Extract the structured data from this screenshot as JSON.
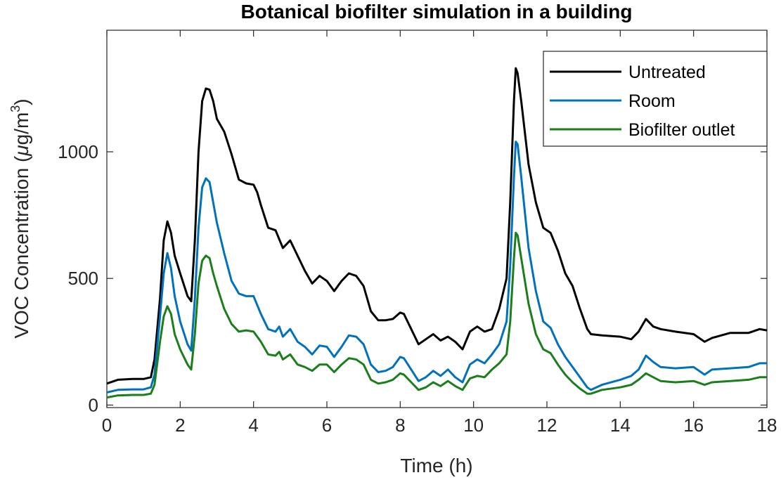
{
  "chart_data": {
    "type": "line",
    "title": "Botanical biofilter simulation in a building",
    "xlabel": "Time (h)",
    "ylabel_text": "VOC Concentration (",
    "ylabel_unit_mu": "μ",
    "ylabel_unit_rest": "g/m",
    "ylabel_unit_sup": "3",
    "ylabel_close": ")",
    "xlim": [
      0,
      18
    ],
    "ylim": [
      -10,
      1480
    ],
    "xticks": [
      0,
      2,
      4,
      6,
      8,
      10,
      12,
      14,
      16,
      18
    ],
    "yticks": [
      0,
      500,
      1000
    ],
    "xtick_labels": [
      "0",
      "2",
      "4",
      "6",
      "8",
      "10",
      "12",
      "14",
      "16",
      "18"
    ],
    "ytick_labels": [
      "0",
      "500",
      "1000"
    ],
    "grid": false,
    "legend_position": "top-right",
    "series": [
      {
        "name": "Untreated",
        "color": "#000000",
        "points": [
          [
            0,
            85
          ],
          [
            0.3,
            100
          ],
          [
            0.7,
            103
          ],
          [
            1.0,
            103
          ],
          [
            1.2,
            110
          ],
          [
            1.3,
            180
          ],
          [
            1.45,
            420
          ],
          [
            1.55,
            650
          ],
          [
            1.65,
            725
          ],
          [
            1.75,
            680
          ],
          [
            1.85,
            590
          ],
          [
            2.0,
            520
          ],
          [
            2.2,
            430
          ],
          [
            2.3,
            410
          ],
          [
            2.4,
            650
          ],
          [
            2.5,
            1000
          ],
          [
            2.6,
            1200
          ],
          [
            2.7,
            1250
          ],
          [
            2.8,
            1245
          ],
          [
            2.9,
            1200
          ],
          [
            3.0,
            1130
          ],
          [
            3.2,
            1080
          ],
          [
            3.4,
            990
          ],
          [
            3.6,
            890
          ],
          [
            3.8,
            875
          ],
          [
            4.0,
            870
          ],
          [
            4.1,
            840
          ],
          [
            4.2,
            790
          ],
          [
            4.4,
            700
          ],
          [
            4.6,
            690
          ],
          [
            4.8,
            620
          ],
          [
            5.0,
            650
          ],
          [
            5.2,
            590
          ],
          [
            5.4,
            530
          ],
          [
            5.6,
            480
          ],
          [
            5.8,
            510
          ],
          [
            6.0,
            490
          ],
          [
            6.2,
            450
          ],
          [
            6.4,
            490
          ],
          [
            6.6,
            520
          ],
          [
            6.8,
            510
          ],
          [
            7.0,
            470
          ],
          [
            7.2,
            370
          ],
          [
            7.4,
            335
          ],
          [
            7.6,
            335
          ],
          [
            7.8,
            340
          ],
          [
            8.0,
            365
          ],
          [
            8.1,
            360
          ],
          [
            8.3,
            300
          ],
          [
            8.5,
            240
          ],
          [
            8.7,
            260
          ],
          [
            8.9,
            280
          ],
          [
            9.1,
            255
          ],
          [
            9.3,
            270
          ],
          [
            9.5,
            250
          ],
          [
            9.7,
            220
          ],
          [
            9.9,
            290
          ],
          [
            10.1,
            310
          ],
          [
            10.3,
            290
          ],
          [
            10.5,
            300
          ],
          [
            10.7,
            380
          ],
          [
            10.9,
            500
          ],
          [
            11.0,
            800
          ],
          [
            11.1,
            1200
          ],
          [
            11.15,
            1330
          ],
          [
            11.2,
            1310
          ],
          [
            11.3,
            1200
          ],
          [
            11.5,
            950
          ],
          [
            11.7,
            800
          ],
          [
            11.9,
            700
          ],
          [
            12.1,
            680
          ],
          [
            12.3,
            610
          ],
          [
            12.5,
            520
          ],
          [
            12.7,
            470
          ],
          [
            12.9,
            380
          ],
          [
            13.1,
            300
          ],
          [
            13.2,
            280
          ],
          [
            13.5,
            275
          ],
          [
            14.0,
            270
          ],
          [
            14.3,
            260
          ],
          [
            14.5,
            290
          ],
          [
            14.7,
            340
          ],
          [
            14.9,
            310
          ],
          [
            15.1,
            300
          ],
          [
            15.5,
            290
          ],
          [
            16.0,
            280
          ],
          [
            16.3,
            250
          ],
          [
            16.5,
            265
          ],
          [
            17.0,
            285
          ],
          [
            17.5,
            285
          ],
          [
            17.8,
            300
          ],
          [
            18.0,
            295
          ]
        ]
      },
      {
        "name": "Room",
        "color": "#0072bd",
        "points": [
          [
            0,
            50
          ],
          [
            0.3,
            60
          ],
          [
            0.7,
            62
          ],
          [
            1.0,
            62
          ],
          [
            1.2,
            70
          ],
          [
            1.3,
            120
          ],
          [
            1.45,
            350
          ],
          [
            1.55,
            520
          ],
          [
            1.65,
            600
          ],
          [
            1.75,
            540
          ],
          [
            1.85,
            430
          ],
          [
            2.0,
            330
          ],
          [
            2.2,
            240
          ],
          [
            2.3,
            215
          ],
          [
            2.4,
            420
          ],
          [
            2.5,
            700
          ],
          [
            2.6,
            860
          ],
          [
            2.7,
            895
          ],
          [
            2.8,
            880
          ],
          [
            2.9,
            800
          ],
          [
            3.0,
            720
          ],
          [
            3.2,
            600
          ],
          [
            3.4,
            490
          ],
          [
            3.6,
            440
          ],
          [
            3.8,
            430
          ],
          [
            4.0,
            430
          ],
          [
            4.2,
            360
          ],
          [
            4.4,
            300
          ],
          [
            4.6,
            290
          ],
          [
            4.7,
            310
          ],
          [
            4.8,
            270
          ],
          [
            5.0,
            300
          ],
          [
            5.2,
            250
          ],
          [
            5.4,
            230
          ],
          [
            5.6,
            200
          ],
          [
            5.8,
            235
          ],
          [
            6.0,
            230
          ],
          [
            6.2,
            190
          ],
          [
            6.4,
            230
          ],
          [
            6.6,
            275
          ],
          [
            6.8,
            270
          ],
          [
            7.0,
            240
          ],
          [
            7.2,
            160
          ],
          [
            7.4,
            130
          ],
          [
            7.6,
            135
          ],
          [
            7.8,
            150
          ],
          [
            8.0,
            190
          ],
          [
            8.1,
            185
          ],
          [
            8.3,
            140
          ],
          [
            8.5,
            95
          ],
          [
            8.7,
            110
          ],
          [
            8.9,
            135
          ],
          [
            9.1,
            115
          ],
          [
            9.3,
            140
          ],
          [
            9.5,
            110
          ],
          [
            9.7,
            90
          ],
          [
            9.9,
            160
          ],
          [
            10.1,
            180
          ],
          [
            10.3,
            165
          ],
          [
            10.5,
            200
          ],
          [
            10.7,
            240
          ],
          [
            10.9,
            330
          ],
          [
            11.0,
            550
          ],
          [
            11.1,
            900
          ],
          [
            11.15,
            1040
          ],
          [
            11.2,
            1030
          ],
          [
            11.3,
            900
          ],
          [
            11.5,
            620
          ],
          [
            11.7,
            450
          ],
          [
            11.9,
            330
          ],
          [
            12.1,
            305
          ],
          [
            12.3,
            240
          ],
          [
            12.5,
            190
          ],
          [
            12.7,
            150
          ],
          [
            12.9,
            110
          ],
          [
            13.1,
            70
          ],
          [
            13.2,
            60
          ],
          [
            13.5,
            80
          ],
          [
            14.0,
            100
          ],
          [
            14.3,
            115
          ],
          [
            14.5,
            140
          ],
          [
            14.7,
            195
          ],
          [
            14.9,
            170
          ],
          [
            15.1,
            150
          ],
          [
            15.5,
            145
          ],
          [
            16.0,
            150
          ],
          [
            16.3,
            120
          ],
          [
            16.5,
            140
          ],
          [
            17.0,
            145
          ],
          [
            17.5,
            150
          ],
          [
            17.8,
            165
          ],
          [
            18.0,
            165
          ]
        ]
      },
      {
        "name": "Biofilter outlet",
        "color": "#1a7f1a",
        "points": [
          [
            0,
            30
          ],
          [
            0.3,
            38
          ],
          [
            0.7,
            40
          ],
          [
            1.0,
            40
          ],
          [
            1.2,
            45
          ],
          [
            1.3,
            80
          ],
          [
            1.45,
            250
          ],
          [
            1.55,
            350
          ],
          [
            1.65,
            390
          ],
          [
            1.75,
            360
          ],
          [
            1.85,
            280
          ],
          [
            2.0,
            220
          ],
          [
            2.2,
            160
          ],
          [
            2.3,
            140
          ],
          [
            2.4,
            280
          ],
          [
            2.5,
            480
          ],
          [
            2.6,
            570
          ],
          [
            2.7,
            590
          ],
          [
            2.8,
            580
          ],
          [
            2.9,
            520
          ],
          [
            3.0,
            470
          ],
          [
            3.2,
            380
          ],
          [
            3.4,
            320
          ],
          [
            3.6,
            290
          ],
          [
            3.8,
            295
          ],
          [
            4.0,
            290
          ],
          [
            4.2,
            250
          ],
          [
            4.4,
            200
          ],
          [
            4.6,
            195
          ],
          [
            4.7,
            210
          ],
          [
            4.8,
            180
          ],
          [
            5.0,
            200
          ],
          [
            5.2,
            160
          ],
          [
            5.4,
            150
          ],
          [
            5.6,
            135
          ],
          [
            5.8,
            160
          ],
          [
            6.0,
            160
          ],
          [
            6.2,
            130
          ],
          [
            6.4,
            160
          ],
          [
            6.6,
            185
          ],
          [
            6.8,
            180
          ],
          [
            7.0,
            160
          ],
          [
            7.2,
            100
          ],
          [
            7.4,
            85
          ],
          [
            7.6,
            90
          ],
          [
            7.8,
            100
          ],
          [
            8.0,
            125
          ],
          [
            8.1,
            120
          ],
          [
            8.3,
            90
          ],
          [
            8.5,
            60
          ],
          [
            8.7,
            70
          ],
          [
            8.9,
            90
          ],
          [
            9.1,
            75
          ],
          [
            9.3,
            95
          ],
          [
            9.5,
            75
          ],
          [
            9.7,
            60
          ],
          [
            9.9,
            105
          ],
          [
            10.1,
            115
          ],
          [
            10.3,
            110
          ],
          [
            10.5,
            140
          ],
          [
            10.7,
            165
          ],
          [
            10.9,
            200
          ],
          [
            11.0,
            330
          ],
          [
            11.1,
            580
          ],
          [
            11.15,
            680
          ],
          [
            11.2,
            670
          ],
          [
            11.3,
            580
          ],
          [
            11.5,
            400
          ],
          [
            11.7,
            280
          ],
          [
            11.9,
            220
          ],
          [
            12.1,
            205
          ],
          [
            12.3,
            160
          ],
          [
            12.5,
            120
          ],
          [
            12.7,
            90
          ],
          [
            12.9,
            65
          ],
          [
            13.1,
            45
          ],
          [
            13.2,
            45
          ],
          [
            13.5,
            60
          ],
          [
            14.0,
            70
          ],
          [
            14.3,
            80
          ],
          [
            14.5,
            100
          ],
          [
            14.7,
            125
          ],
          [
            14.9,
            110
          ],
          [
            15.1,
            95
          ],
          [
            15.5,
            90
          ],
          [
            16.0,
            95
          ],
          [
            16.3,
            80
          ],
          [
            16.5,
            90
          ],
          [
            17.0,
            95
          ],
          [
            17.5,
            100
          ],
          [
            17.8,
            110
          ],
          [
            18.0,
            110
          ]
        ]
      }
    ]
  }
}
